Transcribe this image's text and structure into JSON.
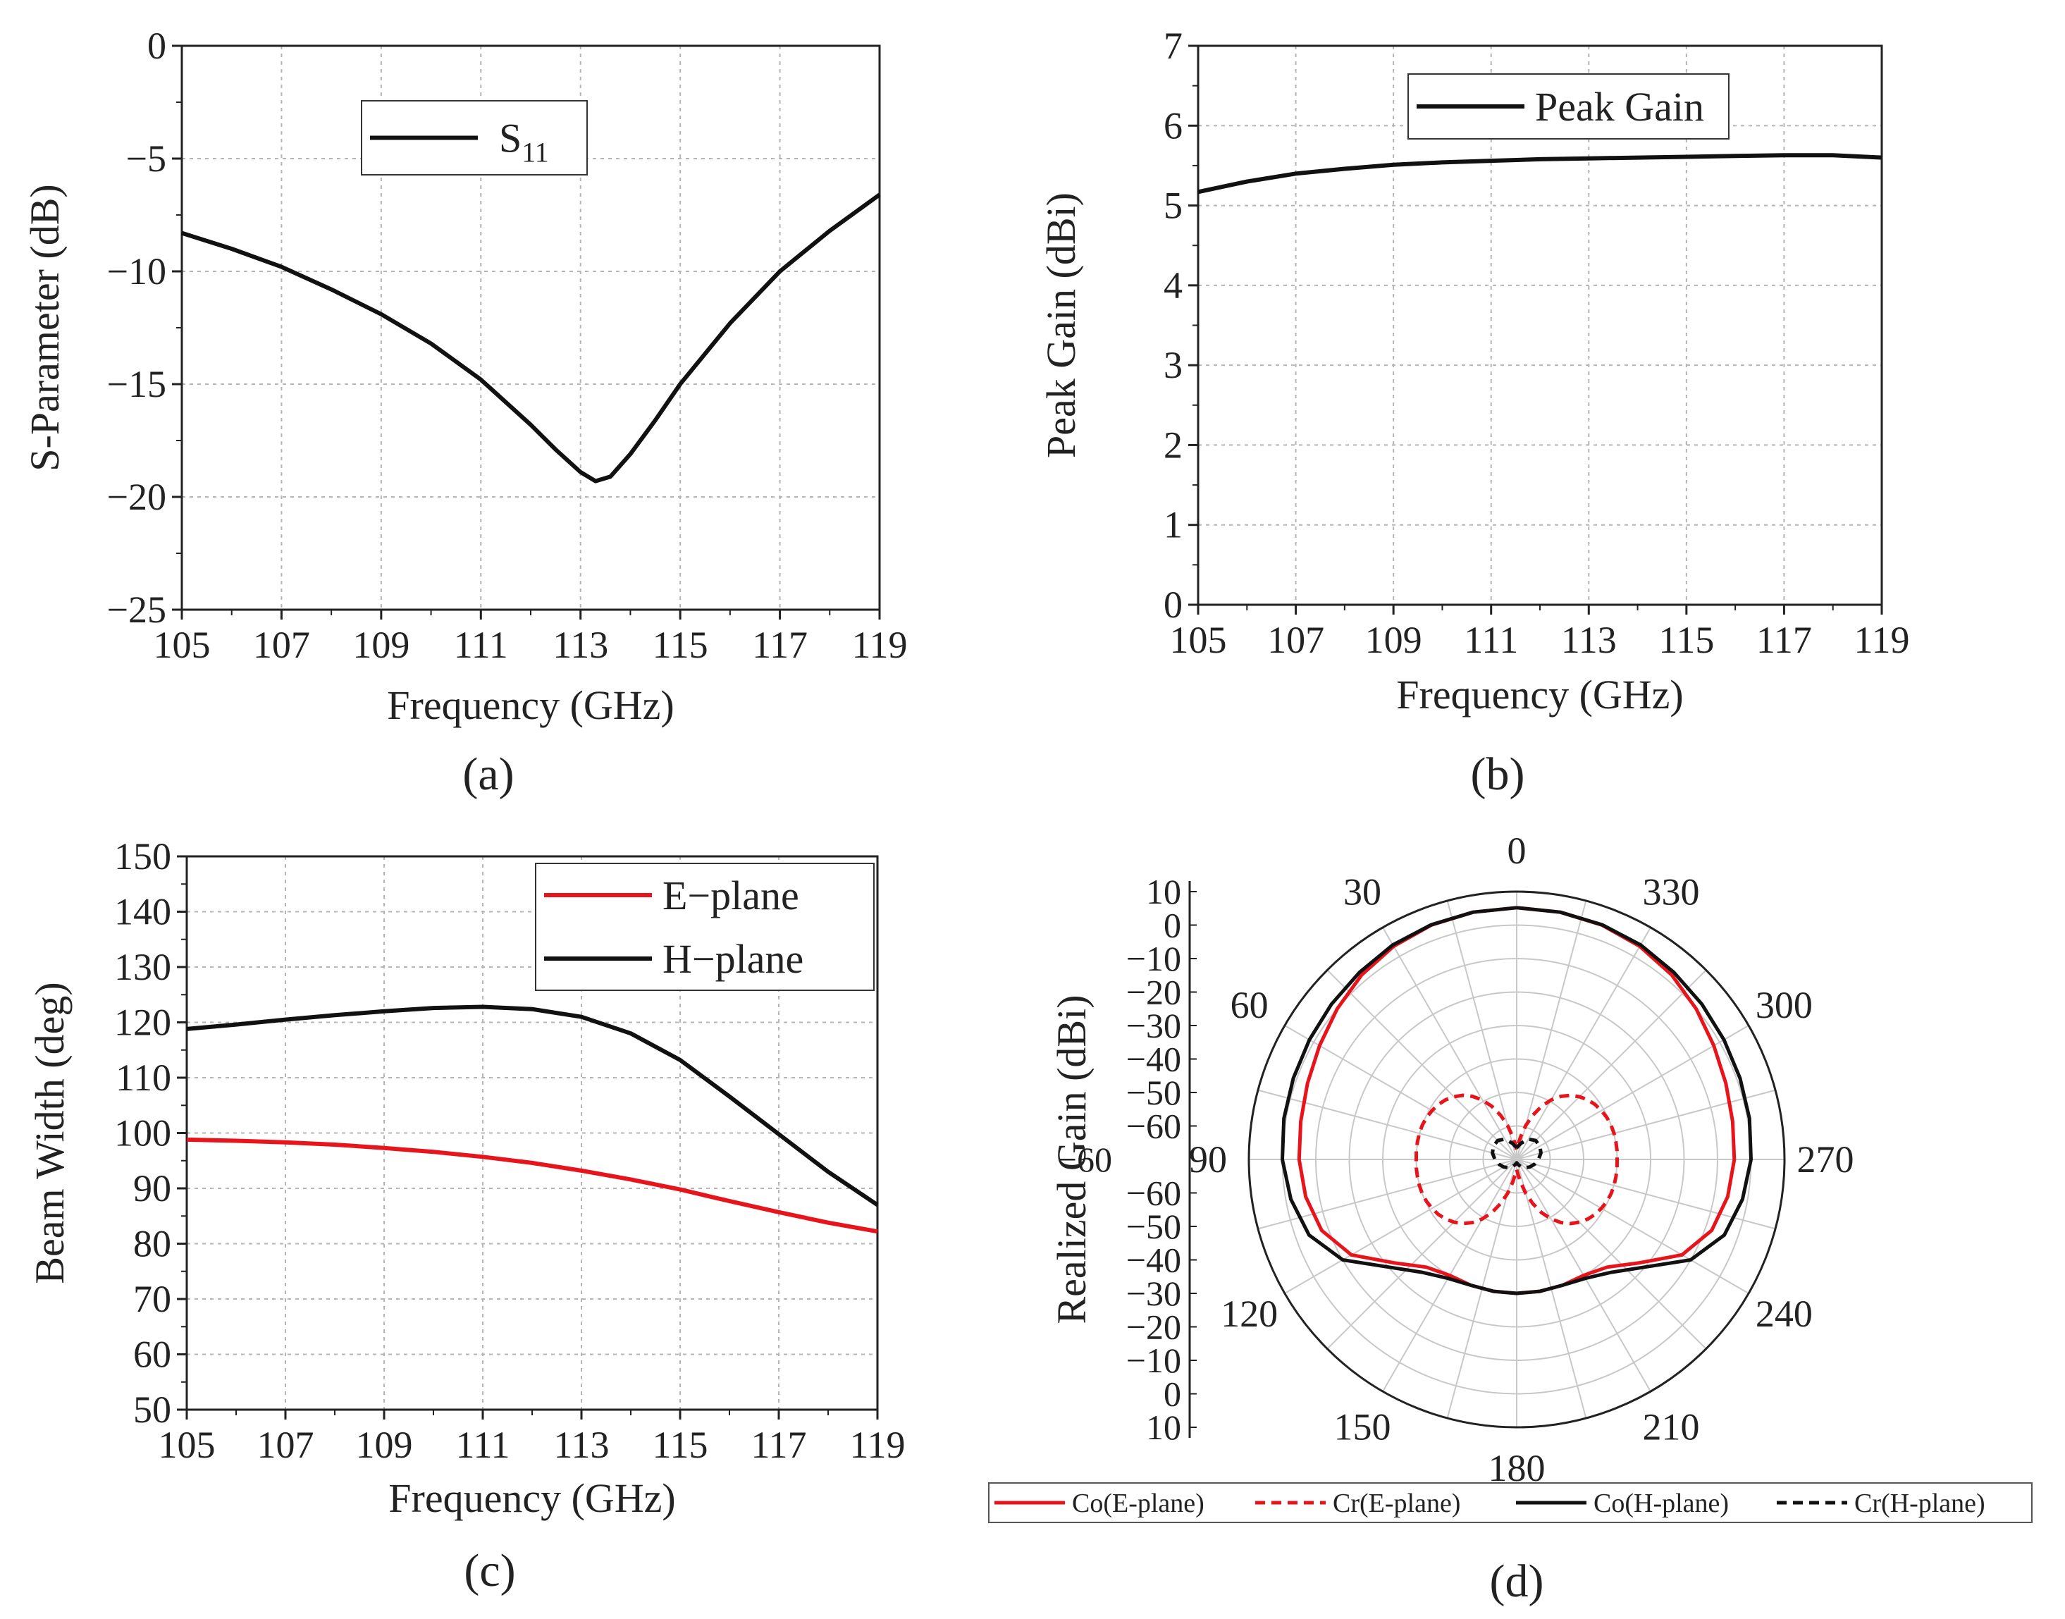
{
  "chart_data": [
    {
      "id": "a",
      "type": "line",
      "panel_label": "a",
      "xlabel": "Frequency (GHz)",
      "ylabel": "S-Parameter (dB)",
      "xlim": [
        105,
        119
      ],
      "ylim": [
        -25,
        0
      ],
      "xticks": [
        105,
        107,
        109,
        111,
        113,
        115,
        117,
        119
      ],
      "yticks": [
        0,
        -5,
        -10,
        -15,
        -20,
        -25
      ],
      "ytick_labels": [
        "0",
        "−5",
        "−10",
        "−15",
        "−20",
        "−25"
      ],
      "grid": true,
      "legend_position": "top-center",
      "series": [
        {
          "name": "S11",
          "legend_main": "S",
          "legend_sub": "11",
          "color": "#111111",
          "dash": "solid",
          "x": [
            105,
            106,
            107,
            108,
            109,
            110,
            111,
            112,
            112.5,
            113,
            113.3,
            113.6,
            114,
            114.5,
            115,
            116,
            117,
            118,
            119
          ],
          "y": [
            -8.3,
            -9.0,
            -9.8,
            -10.8,
            -11.9,
            -13.2,
            -14.8,
            -16.8,
            -17.9,
            -18.9,
            -19.3,
            -19.1,
            -18.1,
            -16.6,
            -15.0,
            -12.3,
            -10.0,
            -8.2,
            -6.6
          ]
        }
      ]
    },
    {
      "id": "b",
      "type": "line",
      "panel_label": "b",
      "xlabel": "Frequency (GHz)",
      "ylabel": "Peak Gain (dBi)",
      "xlim": [
        105,
        119
      ],
      "ylim": [
        0,
        7
      ],
      "xticks": [
        105,
        107,
        109,
        111,
        113,
        115,
        117,
        119
      ],
      "yticks": [
        0,
        1,
        2,
        3,
        4,
        5,
        6,
        7
      ],
      "ytick_labels": [
        "0",
        "1",
        "2",
        "3",
        "4",
        "5",
        "6",
        "7"
      ],
      "grid": true,
      "legend_position": "top-center",
      "series": [
        {
          "name": "Peak Gain",
          "color": "#111111",
          "dash": "solid",
          "x": [
            105,
            106,
            107,
            108,
            109,
            110,
            111,
            112,
            113,
            114,
            115,
            116,
            117,
            118,
            119
          ],
          "y": [
            5.17,
            5.3,
            5.4,
            5.46,
            5.51,
            5.54,
            5.56,
            5.58,
            5.59,
            5.6,
            5.61,
            5.62,
            5.63,
            5.63,
            5.6
          ]
        }
      ]
    },
    {
      "id": "c",
      "type": "line",
      "panel_label": "c",
      "xlabel": "Frequency (GHz)",
      "ylabel": "Beam Width (deg)",
      "xlim": [
        105,
        119
      ],
      "ylim": [
        50,
        150
      ],
      "xticks": [
        105,
        107,
        109,
        111,
        113,
        115,
        117,
        119
      ],
      "yticks": [
        50,
        60,
        70,
        80,
        90,
        100,
        110,
        120,
        130,
        140,
        150
      ],
      "ytick_labels": [
        "50",
        "60",
        "70",
        "80",
        "90",
        "100",
        "110",
        "120",
        "130",
        "140",
        "150"
      ],
      "grid": true,
      "legend_position": "top-right",
      "series": [
        {
          "name": "E−plane",
          "color": "#e8141b",
          "dash": "solid",
          "x": [
            105,
            106,
            107,
            108,
            109,
            110,
            111,
            112,
            113,
            114,
            115,
            116,
            117,
            118,
            119
          ],
          "y": [
            98.8,
            98.6,
            98.3,
            97.9,
            97.3,
            96.6,
            95.7,
            94.6,
            93.2,
            91.6,
            89.8,
            87.7,
            85.7,
            83.8,
            82.2
          ]
        },
        {
          "name": "H−plane",
          "color": "#111111",
          "dash": "solid",
          "x": [
            105,
            106,
            107,
            108,
            109,
            110,
            111,
            112,
            113,
            114,
            115,
            116,
            117,
            118,
            119
          ],
          "y": [
            118.8,
            119.6,
            120.5,
            121.3,
            122.0,
            122.6,
            122.8,
            122.4,
            121.0,
            118.0,
            113.2,
            106.6,
            99.8,
            93.0,
            87.0
          ]
        }
      ]
    },
    {
      "id": "d",
      "type": "polar",
      "panel_label": "d",
      "ylabel": "Realized Gain (dBi)",
      "rlim": [
        -70,
        10
      ],
      "rticks": [
        10,
        0,
        -10,
        -20,
        -30,
        -40,
        -50,
        -60
      ],
      "rtick_labels": [
        "10",
        "0",
        "−10",
        "−20",
        "−30",
        "−40",
        "−50",
        "−60"
      ],
      "angle_labels": [
        "0",
        "30",
        "60",
        "90",
        "120",
        "150",
        "180",
        "210",
        "240",
        "270",
        "300",
        "330"
      ],
      "angle_direction": "counterclockwise, 0 at top",
      "grid": true,
      "legend_position": "bottom",
      "series": [
        {
          "name": "Co(E-plane)",
          "color": "#e8141b",
          "dash": "solid",
          "theta": [
            0,
            10,
            20,
            30,
            40,
            50,
            60,
            70,
            80,
            90,
            100,
            110,
            120,
            130,
            140,
            150,
            160,
            170,
            180,
            190,
            200,
            210,
            220,
            230,
            240,
            250,
            260,
            270,
            280,
            290,
            300,
            310,
            320,
            330,
            340,
            350,
            360
          ],
          "r": [
            5.2,
            5.0,
            4.5,
            3.5,
            2.0,
            0.0,
            -2.0,
            -3.5,
            -4.5,
            -5.0,
            -6.0,
            -8.0,
            -13.0,
            -22.0,
            -28.0,
            -30.0,
            -30.0,
            -30.0,
            -30.0,
            -30.0,
            -30.0,
            -30.0,
            -28.0,
            -22.0,
            -13.0,
            -8.0,
            -6.0,
            -5.0,
            -4.5,
            -3.5,
            -2.0,
            0.0,
            2.0,
            3.5,
            4.5,
            5.0,
            5.2
          ]
        },
        {
          "name": "Cr(E-plane)",
          "color": "#e8141b",
          "dash": "dashed",
          "theta": [
            0,
            5,
            10,
            15,
            20,
            25,
            30,
            35,
            40,
            45,
            50,
            55,
            60,
            65,
            70,
            75,
            80,
            85,
            90,
            95,
            100,
            105,
            110,
            115,
            120,
            125,
            130,
            135,
            140,
            145,
            150,
            155,
            160,
            165,
            170,
            175,
            180,
            185,
            190,
            195,
            200,
            205,
            210,
            215,
            220,
            225,
            230,
            235,
            240,
            245,
            250,
            255,
            260,
            265,
            270,
            275,
            280,
            285,
            290,
            295,
            300,
            305,
            310,
            315,
            320,
            325,
            330,
            335,
            340,
            345,
            350,
            355,
            360
          ],
          "r": [
            -67.0,
            -65.5,
            -63.0,
            -59.5,
            -56.0,
            -52.5,
            -49.5,
            -47.0,
            -45.0,
            -43.5,
            -42.3,
            -41.4,
            -40.8,
            -40.3,
            -40.0,
            -39.9,
            -39.9,
            -39.9,
            -40.0,
            -39.9,
            -39.9,
            -39.9,
            -40.0,
            -40.3,
            -40.8,
            -41.4,
            -42.3,
            -43.5,
            -45.0,
            -47.0,
            -49.5,
            -52.5,
            -56.0,
            -59.5,
            -63.0,
            -65.5,
            -67.0,
            -65.5,
            -63.0,
            -59.5,
            -56.0,
            -52.5,
            -49.5,
            -47.0,
            -45.0,
            -43.5,
            -42.3,
            -41.4,
            -40.8,
            -40.3,
            -40.0,
            -39.9,
            -39.9,
            -39.9,
            -40.0,
            -39.9,
            -39.9,
            -39.9,
            -40.0,
            -40.3,
            -40.8,
            -41.4,
            -42.3,
            -43.5,
            -45.0,
            -47.0,
            -49.5,
            -52.5,
            -56.0,
            -59.5,
            -63.0,
            -65.5,
            -67.0
          ]
        },
        {
          "name": "Co(H-plane)",
          "color": "#111111",
          "dash": "solid",
          "theta": [
            0,
            10,
            20,
            30,
            40,
            50,
            60,
            70,
            80,
            90,
            100,
            110,
            120,
            130,
            140,
            150,
            160,
            170,
            180,
            190,
            200,
            210,
            220,
            230,
            240,
            250,
            260,
            270,
            280,
            290,
            300,
            310,
            320,
            330,
            340,
            350,
            360
          ],
          "r": [
            5.2,
            5.0,
            4.6,
            4.0,
            3.0,
            2.2,
            1.5,
            1.0,
            0.6,
            0.0,
            -1.5,
            -4.0,
            -10.0,
            -20.0,
            -26.0,
            -29.0,
            -30.0,
            -30.0,
            -30.0,
            -30.0,
            -30.0,
            -29.0,
            -26.0,
            -20.0,
            -10.0,
            -4.0,
            -1.5,
            0.0,
            0.6,
            1.0,
            1.5,
            2.2,
            3.0,
            4.0,
            4.6,
            5.0,
            5.2
          ]
        },
        {
          "name": "Cr(H-plane)",
          "color": "#111111",
          "dash": "dashed",
          "theta": [
            0,
            15,
            30,
            45,
            60,
            75,
            90,
            105,
            120,
            135,
            150,
            165,
            180,
            195,
            210,
            225,
            240,
            255,
            270,
            285,
            300,
            315,
            330,
            345,
            360
          ],
          "r": [
            -66.5,
            -65.0,
            -63.0,
            -62.0,
            -62.0,
            -62.5,
            -63.5,
            -64.5,
            -65.5,
            -66.5,
            -67.5,
            -68.5,
            -69.0,
            -68.5,
            -67.5,
            -66.5,
            -65.5,
            -64.5,
            -63.5,
            -62.5,
            -62.0,
            -62.0,
            -63.0,
            -65.0,
            -66.5
          ]
        }
      ]
    }
  ]
}
